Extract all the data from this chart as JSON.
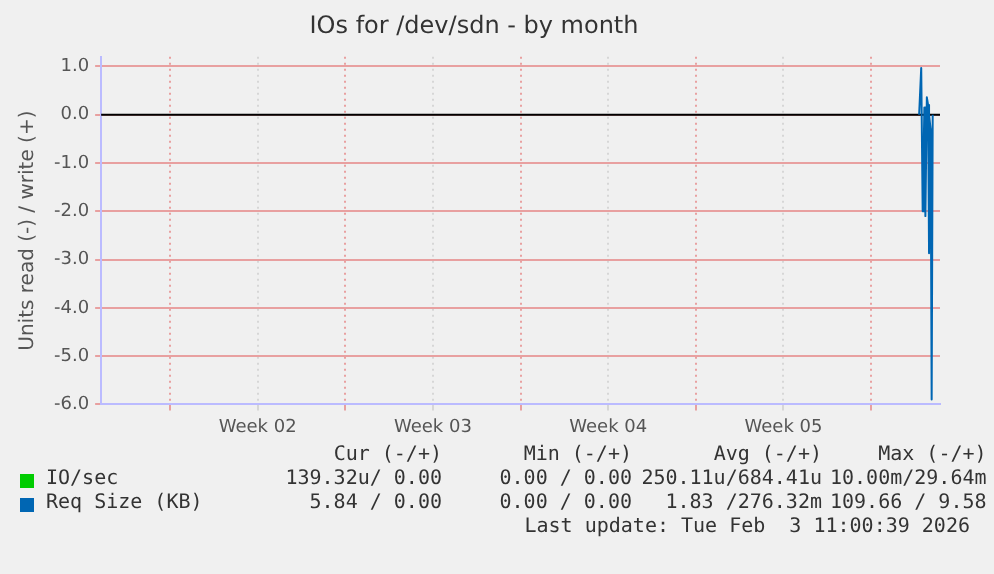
{
  "chart_data": {
    "type": "line",
    "title": "IOs for /dev/sdn - by month",
    "ylabel": "Units read (-) / write (+)",
    "xlim": [
      "2026-01-01T06:00",
      "2026-02-03T18:00"
    ],
    "xticks": [
      {
        "value": "2026-01-04",
        "label": null
      },
      {
        "value": "2026-01-07T12:00",
        "label": "Week 02"
      },
      {
        "value": "2026-01-11",
        "label": null
      },
      {
        "value": "2026-01-14T12:00",
        "label": "Week 03"
      },
      {
        "value": "2026-01-18",
        "label": null
      },
      {
        "value": "2026-01-21T12:00",
        "label": "Week 04"
      },
      {
        "value": "2026-01-25",
        "label": null
      },
      {
        "value": "2026-01-28T12:00",
        "label": "Week 05"
      },
      {
        "value": "2026-02-01",
        "label": null
      }
    ],
    "ylim": [
      -6,
      1.2
    ],
    "yticks": [
      {
        "value": -6,
        "label": "-6.0"
      },
      {
        "value": -5,
        "label": "-5.0"
      },
      {
        "value": -4,
        "label": "-4.0"
      },
      {
        "value": -3,
        "label": "-3.0"
      },
      {
        "value": -2,
        "label": "-2.0"
      },
      {
        "value": -1,
        "label": "-1.0"
      },
      {
        "value": 0,
        "label": "0.0"
      },
      {
        "value": 1,
        "label": "1.0"
      }
    ],
    "grid": true,
    "legend": "bottom",
    "ref_lines": [
      {
        "axis": "y",
        "value": 0,
        "color": "#000000"
      }
    ],
    "series": [
      {
        "name": "IO/sec",
        "color": "#00cc00"
      },
      {
        "name": "Req Size (KB)",
        "color": "#0066b3",
        "x": [
          "2026-02-02T22:00",
          "2026-02-03T00:00",
          "2026-02-03T01:24",
          "2026-02-03T02:36",
          "2026-02-03T03:00",
          "2026-02-03T04:00",
          "2026-02-03T05:24",
          "2026-02-03T06:36",
          "2026-02-03T07:00",
          "2026-02-03T08:00",
          "2026-02-03T09:00",
          "2026-02-03T10:00",
          "2026-02-03T11:00"
        ],
        "values": [
          0,
          0.97,
          -2.0,
          -0.4,
          0.15,
          -2.1,
          0.36,
          0.2,
          -2.87,
          0,
          -0.3,
          -5.9,
          0
        ]
      }
    ],
    "annotations": [
      "Cur (-/+)",
      "Min (-/+)",
      "Avg (-/+)",
      "Max (-/+)",
      "139.32u/ 0.00",
      "0.00 / 0.00",
      "250.11u/684.41u",
      "10.00m/29.64m",
      "5.84 / 0.00",
      "0.00 / 0.00",
      "1.83 /276.32m",
      "109.66 / 9.58",
      "Last update: Tue Feb  3 11:00:39 2026"
    ]
  }
}
